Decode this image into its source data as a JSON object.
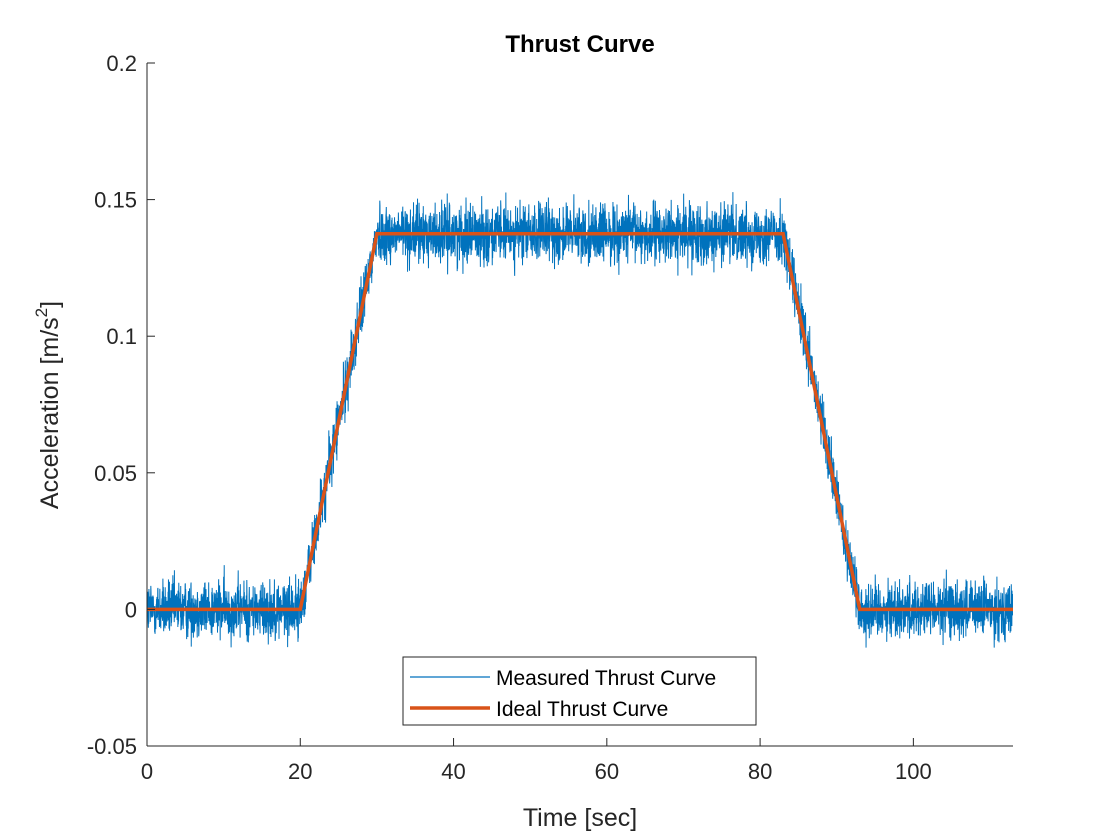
{
  "chart_data": {
    "type": "line",
    "title": "Thrust Curve",
    "xlabel": "Time [sec]",
    "ylabel_main": "Acceleration [m/s",
    "ylabel_sup": "2",
    "ylabel_close": "]",
    "xlim": [
      0,
      113
    ],
    "ylim": [
      -0.05,
      0.2
    ],
    "xticks": [
      0,
      20,
      40,
      60,
      80,
      100
    ],
    "yticks": [
      -0.05,
      0,
      0.05,
      0.1,
      0.15,
      0.2
    ],
    "xtick_labels": [
      "0",
      "20",
      "40",
      "60",
      "80",
      "100"
    ],
    "ytick_labels": [
      "-0.05",
      "0",
      "0.05",
      "0.1",
      "0.15",
      "0.2"
    ],
    "grid": false,
    "legend_position": "bottom-center",
    "series": [
      {
        "name": "Measured Thrust Curve",
        "color": "#0072BD",
        "style": "noisy",
        "x_range": [
          0,
          113
        ],
        "sample_step": 0.025,
        "mean_profile": {
          "x": [
            0,
            20,
            30,
            83,
            93,
            113
          ],
          "y": [
            0,
            0,
            0.1375,
            0.1375,
            0,
            0
          ]
        },
        "noise_amplitude": 0.0095,
        "min_observed": -0.028,
        "max_observed": 0.168
      },
      {
        "name": "Ideal Thrust Curve",
        "color": "#D95319",
        "style": "solid",
        "x": [
          0,
          20,
          30,
          83,
          93,
          113
        ],
        "y": [
          0,
          0,
          0.1375,
          0.1375,
          0,
          0
        ]
      }
    ]
  }
}
